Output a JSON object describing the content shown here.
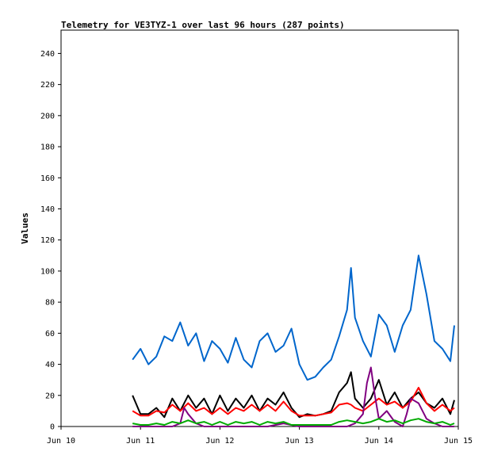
{
  "chart_data": {
    "type": "line",
    "title": "Telemetry for VE3TYZ-1 over last 96 hours (287 points)",
    "xlabel": "",
    "ylabel": "Values",
    "xlim": [
      "Jun 10",
      "Jun 15"
    ],
    "ylim": [
      0,
      255
    ],
    "x_ticks": [
      "Jun 10",
      "Jun 11",
      "Jun 12",
      "Jun 13",
      "Jun 14",
      "Jun 15"
    ],
    "y_ticks": [
      0,
      20,
      40,
      60,
      80,
      100,
      120,
      140,
      160,
      180,
      200,
      220,
      240
    ],
    "grid": false,
    "legend": "none",
    "series": [
      {
        "color": "#0066cc",
        "x": [
          10.9,
          11.0,
          11.1,
          11.2,
          11.3,
          11.4,
          11.5,
          11.6,
          11.7,
          11.8,
          11.9,
          12.0,
          12.1,
          12.2,
          12.3,
          12.4,
          12.5,
          12.6,
          12.7,
          12.8,
          12.9,
          13.0,
          13.1,
          13.2,
          13.3,
          13.4,
          13.5,
          13.6,
          13.65,
          13.7,
          13.8,
          13.9,
          14.0,
          14.1,
          14.2,
          14.3,
          14.4,
          14.5,
          14.6,
          14.7,
          14.8,
          14.9,
          14.95
        ],
        "y": [
          43,
          50,
          40,
          45,
          58,
          55,
          67,
          52,
          60,
          42,
          55,
          50,
          41,
          57,
          43,
          38,
          55,
          60,
          48,
          52,
          63,
          40,
          30,
          32,
          38,
          43,
          58,
          75,
          102,
          70,
          55,
          45,
          72,
          65,
          48,
          65,
          75,
          110,
          85,
          55,
          50,
          42,
          65
        ]
      },
      {
        "color": "#000000",
        "x": [
          10.9,
          11.0,
          11.1,
          11.2,
          11.3,
          11.4,
          11.5,
          11.6,
          11.7,
          11.8,
          11.9,
          12.0,
          12.1,
          12.2,
          12.3,
          12.4,
          12.5,
          12.6,
          12.7,
          12.8,
          12.9,
          13.0,
          13.1,
          13.2,
          13.3,
          13.4,
          13.5,
          13.6,
          13.65,
          13.7,
          13.8,
          13.9,
          14.0,
          14.1,
          14.2,
          14.3,
          14.4,
          14.5,
          14.6,
          14.7,
          14.8,
          14.9,
          14.95
        ],
        "y": [
          20,
          8,
          8,
          12,
          6,
          18,
          10,
          20,
          12,
          18,
          8,
          20,
          10,
          18,
          12,
          20,
          10,
          18,
          14,
          22,
          12,
          6,
          8,
          7,
          8,
          10,
          22,
          28,
          35,
          18,
          12,
          18,
          30,
          14,
          22,
          12,
          18,
          22,
          15,
          12,
          18,
          8,
          17
        ]
      },
      {
        "color": "#ff0000",
        "x": [
          10.9,
          11.0,
          11.1,
          11.2,
          11.3,
          11.4,
          11.5,
          11.6,
          11.7,
          11.8,
          11.9,
          12.0,
          12.1,
          12.2,
          12.3,
          12.4,
          12.5,
          12.6,
          12.7,
          12.8,
          12.9,
          13.0,
          13.1,
          13.2,
          13.3,
          13.4,
          13.5,
          13.6,
          13.65,
          13.7,
          13.8,
          13.9,
          14.0,
          14.1,
          14.2,
          14.3,
          14.4,
          14.5,
          14.6,
          14.7,
          14.8,
          14.9,
          14.95
        ],
        "y": [
          10,
          7,
          7,
          10,
          9,
          14,
          10,
          15,
          10,
          12,
          8,
          12,
          8,
          12,
          10,
          14,
          10,
          14,
          10,
          16,
          10,
          7,
          7,
          7,
          8,
          9,
          14,
          15,
          14,
          12,
          10,
          14,
          18,
          14,
          16,
          12,
          16,
          25,
          15,
          10,
          14,
          10,
          12
        ]
      },
      {
        "color": "#800080",
        "x": [
          10.9,
          11.2,
          11.4,
          11.5,
          11.55,
          11.6,
          11.7,
          11.8,
          12.0,
          12.2,
          12.3,
          12.4,
          12.5,
          12.6,
          12.8,
          13.0,
          13.2,
          13.4,
          13.5,
          13.6,
          13.7,
          13.8,
          13.85,
          13.9,
          13.95,
          14.0,
          14.1,
          14.2,
          14.3,
          14.35,
          14.4,
          14.5,
          14.6,
          14.7,
          14.8,
          14.9,
          14.95
        ],
        "y": [
          0,
          0,
          0,
          2,
          12,
          8,
          2,
          0,
          0,
          0,
          0,
          0,
          0,
          0,
          2,
          0,
          0,
          0,
          0,
          0,
          2,
          8,
          28,
          38,
          20,
          5,
          10,
          3,
          0,
          8,
          18,
          15,
          5,
          2,
          0,
          0,
          0
        ]
      },
      {
        "color": "#00aa00",
        "x": [
          10.9,
          11.0,
          11.1,
          11.2,
          11.3,
          11.4,
          11.5,
          11.6,
          11.7,
          11.8,
          11.9,
          12.0,
          12.1,
          12.2,
          12.3,
          12.4,
          12.5,
          12.6,
          12.7,
          12.8,
          12.9,
          13.0,
          13.1,
          13.2,
          13.3,
          13.4,
          13.5,
          13.6,
          13.7,
          13.8,
          13.9,
          14.0,
          14.1,
          14.2,
          14.3,
          14.4,
          14.5,
          14.6,
          14.7,
          14.8,
          14.9,
          14.95
        ],
        "y": [
          2,
          1,
          1,
          2,
          1,
          3,
          2,
          4,
          2,
          3,
          1,
          3,
          1,
          3,
          2,
          3,
          1,
          3,
          2,
          3,
          1,
          1,
          1,
          1,
          1,
          1,
          3,
          4,
          3,
          2,
          3,
          5,
          3,
          4,
          2,
          4,
          5,
          3,
          2,
          3,
          1,
          2
        ]
      }
    ]
  }
}
